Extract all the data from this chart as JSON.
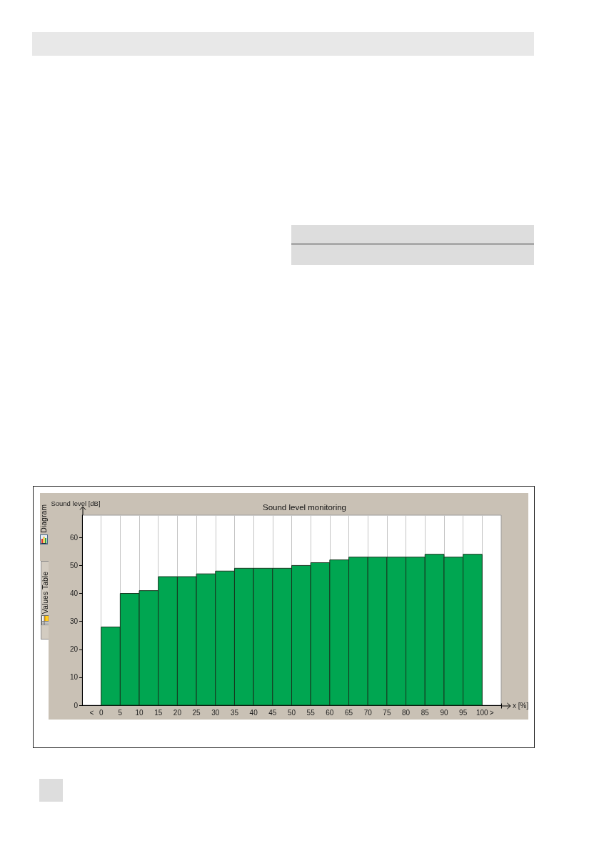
{
  "chart_data": {
    "type": "histogram",
    "title": "Sound level monitoring",
    "xlabel": "x [%]",
    "ylabel": "Sound level [dB]",
    "bins": [
      0,
      5,
      10,
      15,
      20,
      25,
      30,
      35,
      40,
      45,
      50,
      55,
      60,
      65,
      70,
      75,
      80,
      85,
      90,
      95,
      100
    ],
    "values": [
      28,
      40,
      41,
      46,
      46,
      47,
      48,
      49,
      49,
      49,
      50,
      51,
      52,
      53,
      53,
      53,
      53,
      54,
      53,
      54
    ],
    "color": "#00a651",
    "xlim": [
      -5,
      105
    ],
    "xticks": [
      {
        "value": -2.5,
        "label": "<"
      },
      0,
      5,
      10,
      15,
      20,
      25,
      30,
      35,
      40,
      45,
      50,
      55,
      60,
      65,
      70,
      75,
      80,
      85,
      90,
      95,
      100,
      {
        "value": 102.5,
        "label": ">"
      }
    ],
    "ylim": [
      0,
      68
    ],
    "yticks": [
      0,
      10,
      20,
      30,
      40,
      50,
      60
    ],
    "grid": "x",
    "annotations": [
      "Diagram",
      "Values Table"
    ]
  }
}
